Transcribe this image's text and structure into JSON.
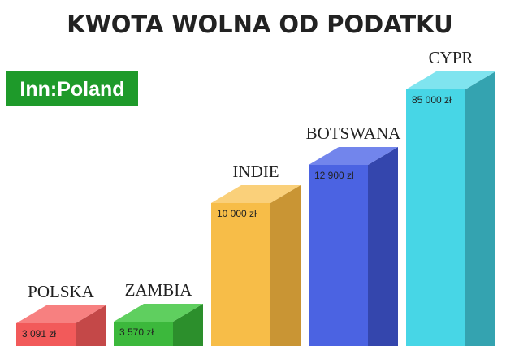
{
  "header": {
    "title": "KWOTA WOLNA OD PODATKU",
    "logo": "Inn:Poland"
  },
  "bars": [
    {
      "country": "POLSKA",
      "amount": "3 091 zł"
    },
    {
      "country": "ZAMBIA",
      "amount": "3 570 zł"
    },
    {
      "country": "INDIE",
      "amount": "10 000 zł"
    },
    {
      "country": "BOTSWANA",
      "amount": "12 900 zł"
    },
    {
      "country": "CYPR",
      "amount": "85 000 zł"
    }
  ]
}
